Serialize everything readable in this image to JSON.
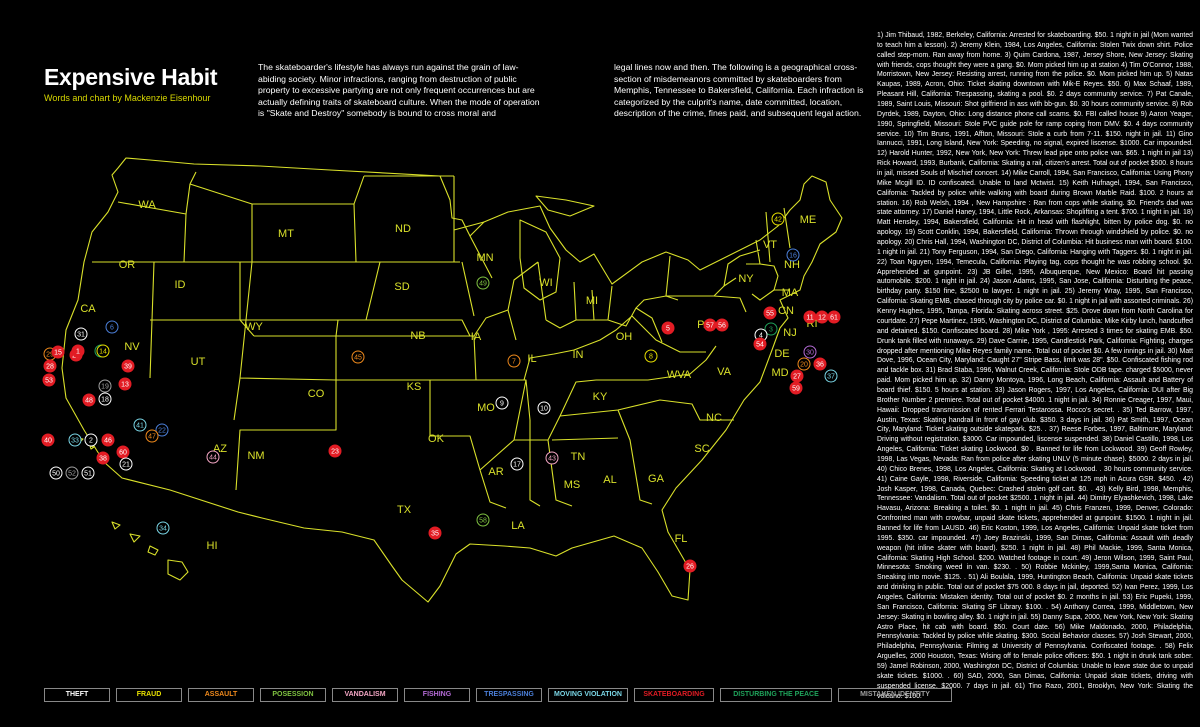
{
  "header": {
    "title": "Expensive Habit",
    "subtitle": "Words and chart by Mackenzie Eisenhour"
  },
  "intro": {
    "col1": "The skateboarder's lifestyle has always run against the grain of law-abiding society. Minor infractions, ranging from destruction of public property to excessive partying are not only frequent occurrences but are actually defining traits of skateboard culture. When the mode of operation is \"Skate and Destroy\" somebody is bound to cross moral and",
    "col2": "legal lines now and then. The following is a geographical cross-section of misdemeanors committed by skateboarders from Memphis, Tennessee to Bakersfield, California. Each infraction is categorized by the culprit's name, date committed, location, description of the crime, fines paid, and subsequent legal action."
  },
  "story": "1) Jim Thibaud, 1982, Berkeley, California: Arrested for skateboarding. $50. 1 night in jail (Mom wanted to teach him a lesson). 2) Jeremy Klein, 1984, Los Angeles, California: Stolen Twix down shirt. Police called step-mom. Ran away from home. 3) Quim Cardona, 1987, Jersey Shore, New Jersey: Skating with friends, cops thought they were a gang. $0. Mom picked him up at station 4) Tim O'Connor, 1988, Morristown, New Jersey: Resisting arrest, running from the police. $0. Mom picked him up. 5) Natas Kaupas, 1989, Acron, Ohio: Ticket skating downtown with Mik-E Reyes. $50. 6) Max Schaaf, 1989, Pleasant Hill, California: Trespassing, skating a pool. $0. 2 days community service. 7) Pat Canale, 1989, Saint Louis, Missouri: Shot girlfriend in ass with bb-gun. $0. 30 hours community service. 8) Rob Dyrdek, 1989, Dayton, Ohio: Long distance phone call scams. $0. FBI called house 9) Aaron Yeager, 1990, Springfield, Missouri: Stole PVC guide pole for ramp coping from DMV. $0. 4 days community service. 10) Tim Bruns, 1991, Affton, Missouri: Stole a curb from 7-11. $150. night in jail. 11) Gino Iannucci, 1991, Long Island, New York: Speeding, no signal, expired liscense. $1000. Car impounded. 12) Harold Hunter, 1992, New York, New York: Threw lead pipe onto police van. $65. 1 night in jail 13) Rick Howard, 1993, Burbank, California: Skating a rail, citizen's arrest. Total out of pocket $500. 8 hours in jail, missed Souls of Mischief concert. 14) Mike Carroll, 1994, San Francisco, California: Using Phony Mike Mcgill ID. ID confiscated. Unable to land Mctwist. 15) Keith Hufnagel, 1994, San Francisco, California: Tackled by police while walking with board during Brown Marble Raid. $100. 2 hours at station. 16) Rob Welsh, 1994 , New Hampshire : Ran from cops while skating. $0. Friend's dad was state attorney. 17) Daniel Haney, 1994, Little Rock, Arkansas: Shoplifting a tent. $700. 1 night in jail. 18) Matt Hensley, 1994, Bakersfield, California: Hit in head with flashlight, bitten by police dog. $0. no apology. 19) Scott Conklin, 1994, Bakersfield, California: Thrown through windshield by police. $0. no apology. 20) Chris Hall, 1994, Washington DC, District of Columbia: Hit business man with board. $100. 1 night in jail. 21) Tony Ferguson, 1994, San Diego, California: Hanging with Taggers. $0. 1 night in jail. 22) Toan Nguyen, 1994, Temecula, California: Playing tag, cops thought he was robbing school. $0. Apprehended at gunpoint. 23) JB Gillet, 1995, Albuquerque, New Mexico: Board hit passing automobile. $200. 1 night in jail. 24) Jason Adams, 1995, San Jose, California: Disturbing the peace, birthday party. $150 fine, $2500 to lawyer. 1 night in jail. 25) Jeremy Wray, 1995, San Francisco, California: Skating EMB, chased through city by police car. $0. 1 night in jail with assorted criminals. 26) Kenny Hughes, 1995, Tampa, Florida: Skating across street. $25. Drove down from North Carolina for courtdate. 27) Pepe Martinez, 1995, Washington DC, District of Columbia: Mike Kirby lunch, handcuffed and detained. $150. Confiscated board. 28) Mike York , 1995: Arrested 3 times for skating EMB. $50. Drunk tank filled with runaways. 29) Dave Carnie, 1995, Candlestick Park, California: Fighting, charges dropped after mentioning Mike Reyes family name. Total out of pocket $0. A few innings in jail. 30) Matt Dove, 1996, Ocean City, Maryland: Caught 27\" Stripe Bass, limit was 28\". $50. Confiscated fishing rod and tackle box. 31) Brad Staba, 1996, Walnut Creek, California: Stole ODB tape. charged $5000, never paid. Mom picked him up. 32) Danny Montoya, 1996, Long Beach, California: Assault and Battery of board thief. $150. 5 hours at station. 33) Jason Rogers, 1997, Los Angeles, California: DUI after Big Brother Number 2 premiere. Total out of pocket $4000. 1 night in jail. 34) Ronnie Creager, 1997, Maui, Hawaii: Dropped transmission of rented Ferrari Testarossa. Rocco's secret. . 35) Ted Barrow, 1997, Austin, Texas: Skating handrail in front of gay club. $350. 3 days in jail. 36) Pat Smith, 1997, Ocean City, Maryland: Ticket skating outside skatepark. $25. . 37) Reese Forbes, 1997, Baltimore, Maryland: Driving without registration. $3000. Car impounded, liscense suspended. 38) Daniel Castillo, 1998, Los Angeles, California: Ticket skating Lockwood. $0 . Banned for life from Lockwood. 39) Geoff Rowley, 1998, Las Vegas, Nevada: Ran from police after skating UNLV (5 minute chase). $5000. 2 days in jail. 40) Chico Brenes, 1998, Los Angeles, California: Skating at Lockwood. . 30 hours community service. 41) Caine Gayle, 1998, Riverside, California: Speeding ticket at 125 mph in Acura GSR. $450. . 42) Josh Kasper, 1998, Canada, Quebec: Crashed stolen golf cart. $0. . 43) Kelly Bird, 1998, Memphis, Tennessee: Vandalism. Total out of pocket $2500. 1 night in jail. 44) Dimitry Elyashkevich, 1998, Lake Havasu, Arizona: Breaking a toilet. $0. 1 night in jail. 45) Chris Franzen, 1999, Denver, Colorado: Confronted man with crowbar, unpaid skate tickets, apprehended at gunpoint. $1500. 1 night in jail. Banned for life from LAUSD. 46) Eric Koston, 1999, Los Angeles, California: Unpaid skate ticket from 1995. $350. car impounded. 47) Joey Brazinski, 1999, San Dimas, California: Assault with deadly weapon (hit inline skater with board). $250. 1 night in jail. 48) Phil Mackie, 1999, Santa Monica, California: Skating High School. $200. Watched footage in court. 49) Jeron Wilson, 1999, Saint Paul, Minnesota: Smoking weed in van. $230. . 50) Robbie Mckinley, 1999,Santa Monica, California: Sneaking into movie. $125. . 51) Ali Boulala, 1999, Huntington Beach, California: Unpaid skate tickets and drinking in public. Total out of pocket $75 000. 8 days in jail, deported. 52) Ivan Perez, 1999, Los Angeles, California: Mistaken identity. Total out of pocket $0. 2 months in jail. 53) Eric Pupeki, 1999, San Francisco, California: Skating SF Library. $100. . 54) Anthony Correa, 1999, Middletown, New Jersey: Skating in bowling alley. $0. 1 night in jail. 55) Danny Supa, 2000, New York, New York: Skating Astro Place, hit cab with board. $50. Court date. 56) Mike Maldonado, 2000, Philadelphia, Pennsylvania: Tackled by police while skating. $300. Social Behavior classes. 57) Josh Stewart, 2000, Philadelphia, Pennsylvania: Filming at University of Pennsylvania. Confiscated footage. . 58) Felix Arguelles, 2000 Houston, Texas: Wising off to female police officers: $50. 1 night in drunk tank sober. 59) Jamel Robinson, 2000, Washington DC, District of Columbia: Unable to leave state due to unpaid skate tickets. $1000. . 60) SAD, 2000, San Dimas, California: Unpaid skate tickets, driving with suspended license. $2000. 7 days in jail. 61) Tino Razo, 2001, Brooklyn, New York: Skating the volcano. $100.",
  "legend": [
    {
      "label": "THEFT",
      "color": "#ffffff"
    },
    {
      "label": "FRAUD",
      "color": "#e8e000"
    },
    {
      "label": "ASSAULT",
      "color": "#f08a1c"
    },
    {
      "label": "POSESSION",
      "color": "#7fc241"
    },
    {
      "label": "VANDALISM",
      "color": "#f4a6c4"
    },
    {
      "label": "FISHING",
      "color": "#b46bd6"
    },
    {
      "label": "TRESPASSING",
      "color": "#4b7fd9"
    },
    {
      "label": "MOVING VIOLATION",
      "color": "#7ad6e6"
    },
    {
      "label": "SKATEBOARDING",
      "color": "#e21c24"
    },
    {
      "label": "DISTURBING THE PEACE",
      "color": "#1fa25a"
    },
    {
      "label": "MISTAKEN IDENTITY",
      "color": "#a0a0a0"
    }
  ],
  "map": {
    "line_color": "#d9e02a",
    "states": [
      "WA",
      "OR",
      "CA",
      "ID",
      "NV",
      "MT",
      "WY",
      "UT",
      "AZ",
      "CO",
      "NM",
      "ND",
      "SD",
      "NB",
      "KS",
      "OK",
      "TX",
      "MN",
      "IA",
      "MO",
      "AR",
      "LA",
      "WI",
      "IL",
      "MI",
      "IN",
      "OH",
      "KY",
      "TN",
      "MS",
      "AL",
      "GA",
      "FL",
      "SC",
      "NC",
      "VA",
      "WVA",
      "PA",
      "NY",
      "VT",
      "NH",
      "ME",
      "MA",
      "CN",
      "RI",
      "NJ",
      "DE",
      "MD",
      "HI"
    ],
    "markers": [
      {
        "num": "42",
        "cat": "FRAUD"
      },
      {
        "num": "16",
        "cat": "TRESPASSING"
      },
      {
        "num": "49",
        "cat": "POSESSION"
      },
      {
        "num": "5",
        "cat": "SKATEBOARDING"
      },
      {
        "num": "8",
        "cat": "FRAUD"
      },
      {
        "num": "7",
        "cat": "ASSAULT"
      },
      {
        "num": "10",
        "cat": "THEFT"
      },
      {
        "num": "9",
        "cat": "THEFT"
      },
      {
        "num": "43",
        "cat": "VANDALISM"
      },
      {
        "num": "17",
        "cat": "THEFT"
      },
      {
        "num": "45",
        "cat": "ASSAULT"
      },
      {
        "num": "23",
        "cat": "SKATEBOARDING"
      },
      {
        "num": "44",
        "cat": "VANDALISM"
      },
      {
        "num": "35",
        "cat": "SKATEBOARDING"
      },
      {
        "num": "58",
        "cat": "POSESSION"
      },
      {
        "num": "26",
        "cat": "SKATEBOARDING"
      },
      {
        "num": "34",
        "cat": "MOVING VIOLATION"
      },
      {
        "num": "57",
        "cat": "SKATEBOARDING"
      },
      {
        "num": "56",
        "cat": "SKATEBOARDING"
      },
      {
        "num": "11",
        "cat": "SKATEBOARDING"
      },
      {
        "num": "12",
        "cat": "SKATEBOARDING"
      },
      {
        "num": "61",
        "cat": "SKATEBOARDING"
      },
      {
        "num": "55",
        "cat": "SKATEBOARDING"
      },
      {
        "num": "3",
        "cat": "DISTURBING THE PEACE"
      },
      {
        "num": "4",
        "cat": "THEFT"
      },
      {
        "num": "54",
        "cat": "SKATEBOARDING"
      },
      {
        "num": "30",
        "cat": "FISHING"
      },
      {
        "num": "36",
        "cat": "SKATEBOARDING"
      },
      {
        "num": "37",
        "cat": "MOVING VIOLATION"
      },
      {
        "num": "20",
        "cat": "ASSAULT"
      },
      {
        "num": "27",
        "cat": "SKATEBOARDING"
      },
      {
        "num": "59",
        "cat": "SKATEBOARDING"
      },
      {
        "num": "31",
        "cat": "THEFT"
      },
      {
        "num": "6",
        "cat": "TRESPASSING"
      },
      {
        "num": "29",
        "cat": "ASSAULT"
      },
      {
        "num": "28",
        "cat": "SKATEBOARDING"
      },
      {
        "num": "15",
        "cat": "SKATEBOARDING"
      },
      {
        "num": "53",
        "cat": "SKATEBOARDING"
      },
      {
        "num": "25",
        "cat": "SKATEBOARDING"
      },
      {
        "num": "24",
        "cat": "DISTURBING THE PEACE"
      },
      {
        "num": "14",
        "cat": "FRAUD"
      },
      {
        "num": "1",
        "cat": "SKATEBOARDING"
      },
      {
        "num": "39",
        "cat": "SKATEBOARDING"
      },
      {
        "num": "19",
        "cat": "MISTAKEN IDENTITY"
      },
      {
        "num": "18",
        "cat": "THEFT"
      },
      {
        "num": "13",
        "cat": "SKATEBOARDING"
      },
      {
        "num": "48",
        "cat": "SKATEBOARDING"
      },
      {
        "num": "41",
        "cat": "MOVING VIOLATION"
      },
      {
        "num": "22",
        "cat": "TRESPASSING"
      },
      {
        "num": "47",
        "cat": "ASSAULT"
      },
      {
        "num": "60",
        "cat": "SKATEBOARDING"
      },
      {
        "num": "21",
        "cat": "THEFT"
      },
      {
        "num": "38",
        "cat": "SKATEBOARDING"
      },
      {
        "num": "33",
        "cat": "MOVING VIOLATION"
      },
      {
        "num": "2",
        "cat": "THEFT"
      },
      {
        "num": "46",
        "cat": "SKATEBOARDING"
      },
      {
        "num": "40",
        "cat": "SKATEBOARDING"
      },
      {
        "num": "50",
        "cat": "THEFT"
      },
      {
        "num": "52",
        "cat": "MISTAKEN IDENTITY"
      },
      {
        "num": "51",
        "cat": "THEFT"
      }
    ]
  }
}
